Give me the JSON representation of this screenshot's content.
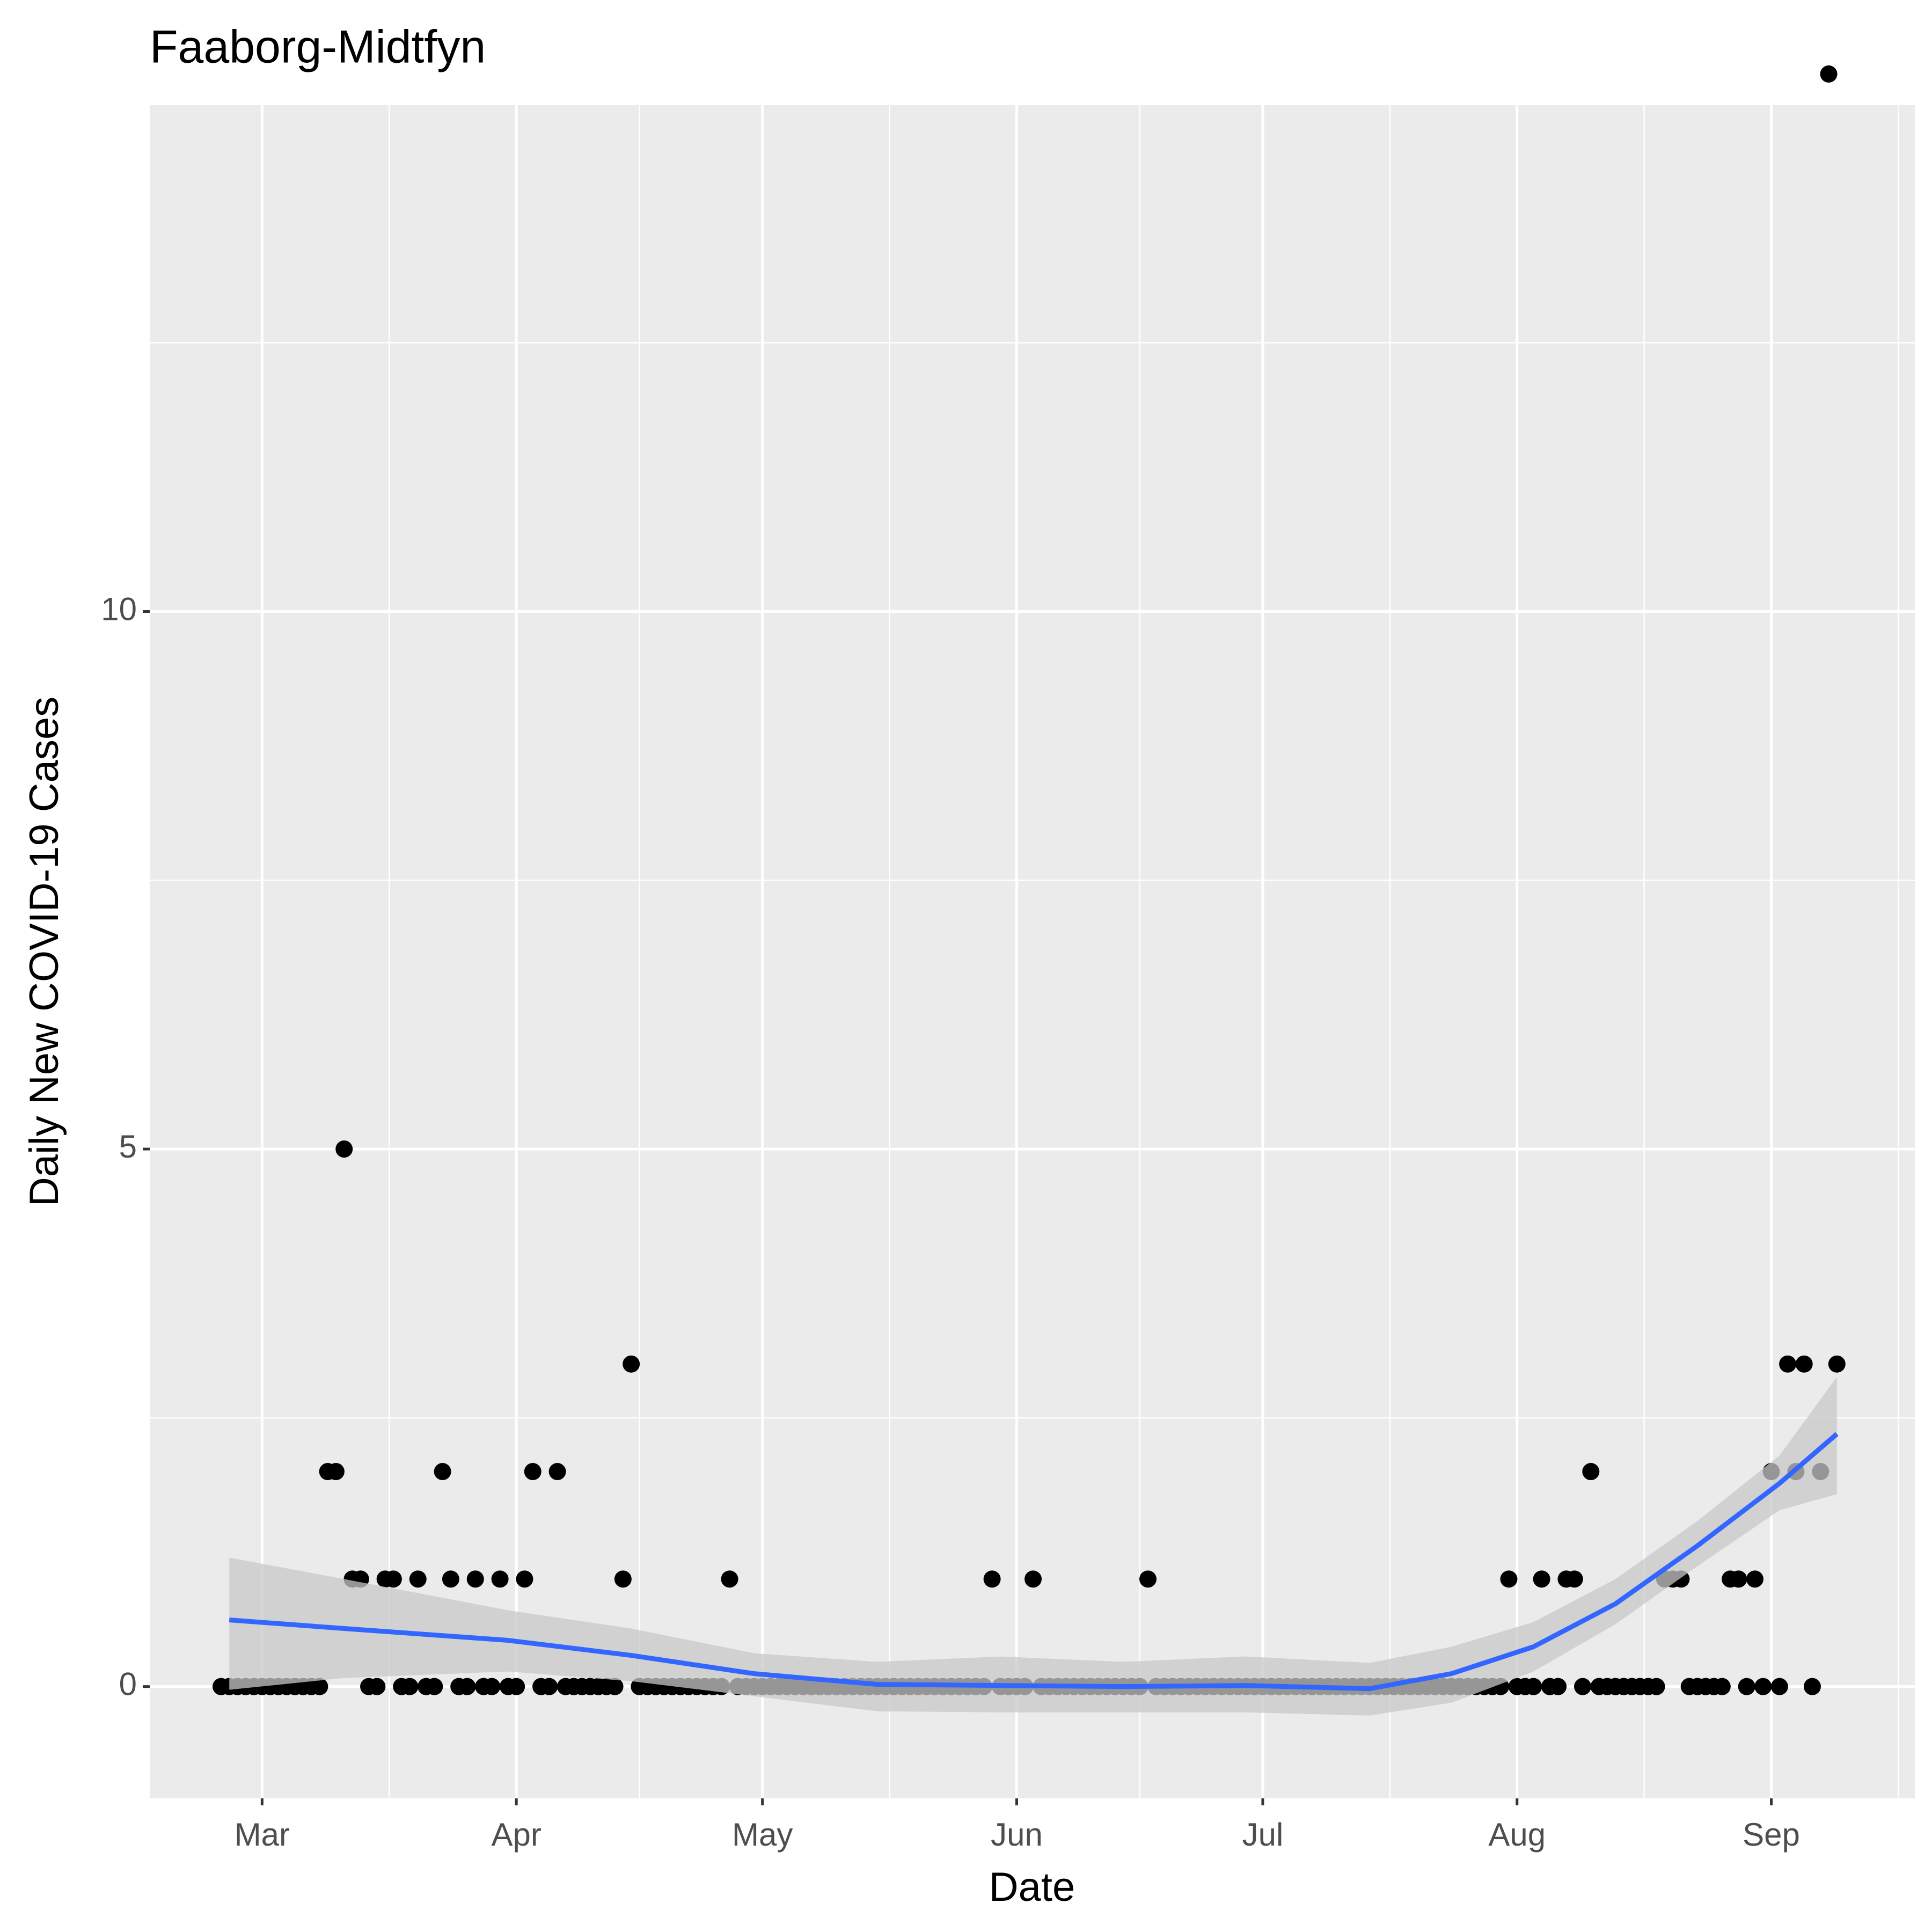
{
  "chart_data": {
    "type": "scatter",
    "title": "Faaborg-Midtfyn",
    "x_label": "Date",
    "y_label": "Daily New COVID-19 Cases",
    "color": "#000000",
    "x": [
      -5,
      -4,
      -3,
      -2,
      -1,
      0,
      1,
      2,
      3,
      4,
      5,
      6,
      7,
      8,
      9,
      10,
      11,
      12,
      13,
      14,
      15,
      16,
      17,
      18,
      19,
      20,
      21,
      22,
      23,
      24,
      25,
      26,
      27,
      28,
      29,
      30,
      31,
      32,
      33,
      34,
      35,
      36,
      37,
      38,
      39,
      40,
      41,
      42,
      43,
      44,
      45,
      46,
      47,
      48,
      49,
      50,
      51,
      52,
      53,
      54,
      55,
      56,
      57,
      58,
      59,
      60,
      61,
      62,
      63,
      64,
      65,
      66,
      67,
      68,
      69,
      70,
      71,
      72,
      73,
      74,
      75,
      76,
      77,
      78,
      79,
      80,
      81,
      82,
      83,
      84,
      85,
      86,
      87,
      88,
      89,
      90,
      91,
      92,
      93,
      94,
      95,
      96,
      97,
      98,
      99,
      100,
      101,
      102,
      103,
      104,
      105,
      106,
      107,
      108,
      109,
      110,
      111,
      112,
      113,
      114,
      115,
      116,
      117,
      118,
      119,
      120,
      121,
      122,
      123,
      124,
      125,
      126,
      127,
      128,
      129,
      130,
      131,
      132,
      133,
      134,
      135,
      136,
      137,
      138,
      139,
      140,
      141,
      142,
      143,
      144,
      145,
      146,
      147,
      148,
      149,
      150,
      151,
      152,
      153,
      154,
      155,
      156,
      157,
      158,
      159,
      160,
      161,
      162,
      163,
      164,
      165,
      166,
      167,
      168,
      169,
      170,
      171,
      172,
      173,
      174,
      175,
      176,
      177,
      178,
      179,
      180,
      181,
      182,
      183,
      184,
      185,
      186,
      187,
      188,
      189,
      190,
      191,
      192
    ],
    "values": [
      0,
      0,
      0,
      0,
      0,
      0,
      0,
      0,
      0,
      0,
      0,
      0,
      0,
      2,
      2,
      5,
      1,
      1,
      0,
      0,
      1,
      1,
      0,
      0,
      1,
      0,
      0,
      2,
      1,
      0,
      0,
      1,
      0,
      0,
      1,
      0,
      0,
      1,
      2,
      0,
      0,
      2,
      0,
      0,
      0,
      0,
      0,
      0,
      0,
      1,
      3,
      0,
      0,
      0,
      0,
      0,
      0,
      0,
      0,
      0,
      0,
      0,
      1,
      0,
      0,
      0,
      0,
      0,
      0,
      0,
      0,
      0,
      0,
      0,
      0,
      0,
      0,
      0,
      0,
      0,
      0,
      0,
      0,
      0,
      0,
      0,
      0,
      0,
      0,
      0,
      0,
      0,
      0,
      0,
      1,
      0,
      0,
      0,
      0,
      1,
      0,
      0,
      0,
      0,
      0,
      0,
      0,
      0,
      0,
      0,
      0,
      0,
      0,
      1,
      0,
      0,
      0,
      0,
      0,
      0,
      0,
      0,
      0,
      0,
      0,
      0,
      0,
      0,
      0,
      0,
      0,
      0,
      0,
      0,
      0,
      0,
      0,
      0,
      0,
      0,
      0,
      0,
      0,
      0,
      0,
      0,
      0,
      0,
      0,
      0,
      0,
      0,
      0,
      0,
      0,
      0,
      0,
      1,
      0,
      0,
      0,
      1,
      0,
      0,
      1,
      1,
      0,
      2,
      0,
      0,
      0,
      0,
      0,
      0,
      0,
      0,
      1,
      1,
      1,
      0,
      0,
      0,
      0,
      0,
      1,
      1,
      0,
      1,
      0,
      2,
      0,
      3,
      2,
      3,
      0,
      2,
      15,
      3
    ],
    "trend": {
      "color": "#3366ff",
      "band_color": "#c8c8c8",
      "x": [
        -4,
        10,
        30,
        45,
        60,
        75,
        90,
        105,
        120,
        135,
        145,
        155,
        165,
        175,
        185,
        192
      ],
      "values": [
        0.62,
        0.54,
        0.43,
        0.29,
        0.12,
        0.02,
        0.01,
        0,
        0.01,
        -0.02,
        0.12,
        0.37,
        0.77,
        1.31,
        1.89,
        2.35
      ],
      "upper": [
        1.2,
        1.0,
        0.71,
        0.54,
        0.31,
        0.23,
        0.28,
        0.23,
        0.28,
        0.22,
        0.37,
        0.6,
        1.0,
        1.54,
        2.15,
        2.88
      ],
      "lower": [
        -0.03,
        0.08,
        0.14,
        0.05,
        -0.09,
        -0.23,
        -0.24,
        -0.24,
        -0.24,
        -0.27,
        -0.15,
        0.14,
        0.58,
        1.12,
        1.64,
        1.79
      ]
    },
    "xlim": [
      -13.7,
      201.5
    ],
    "ylim": [
      -1.04,
      14.71
    ],
    "xticks": [
      {
        "value": 0,
        "label": "Mar"
      },
      {
        "value": 31,
        "label": "Apr"
      },
      {
        "value": 61,
        "label": "May"
      },
      {
        "value": 92,
        "label": "Jun"
      },
      {
        "value": 122,
        "label": "Jul"
      },
      {
        "value": 153,
        "label": "Aug"
      },
      {
        "value": 184,
        "label": "Sep"
      }
    ],
    "yticks": [
      0,
      5,
      10
    ],
    "minor_xticks": [
      15.5,
      46,
      76.5,
      107,
      137.5,
      168.5,
      199.5
    ],
    "minor_yticks": [
      2.5,
      7.5,
      12.5
    ],
    "grid": true
  }
}
